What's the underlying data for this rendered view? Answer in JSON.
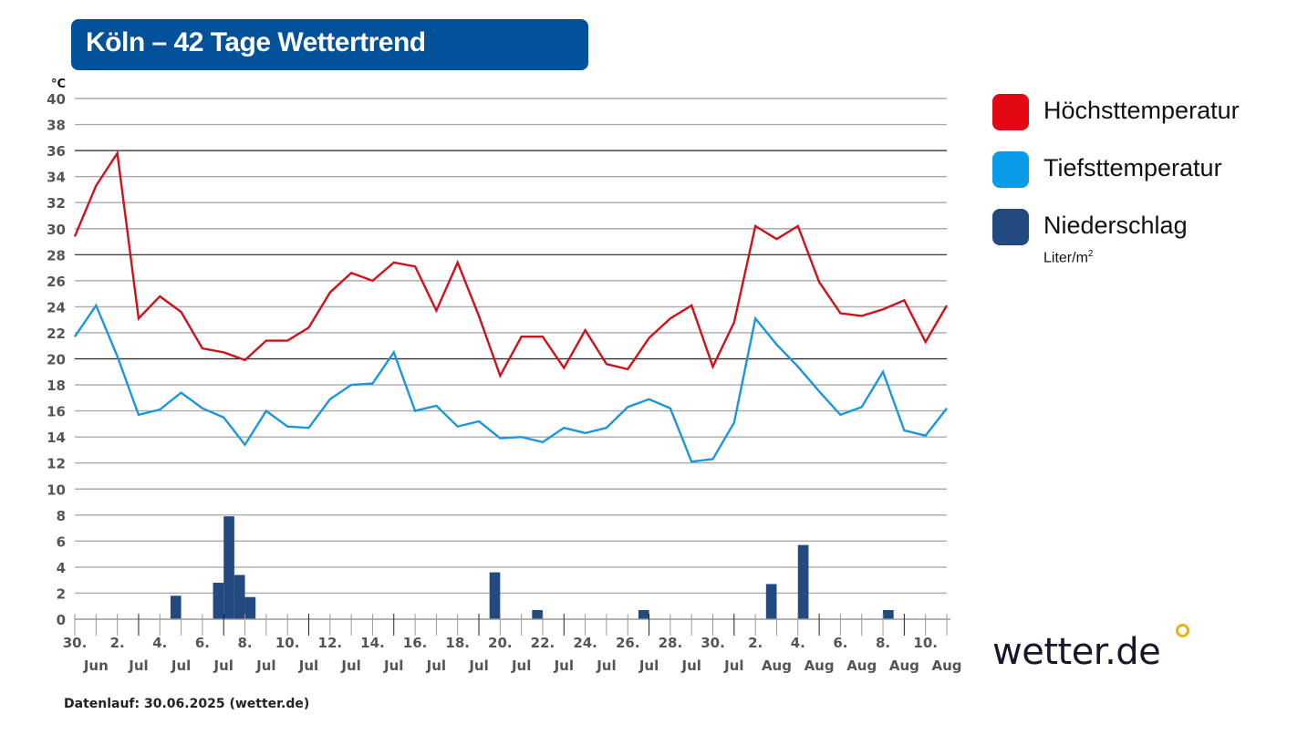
{
  "title": "Köln – 42 Tage Wettertrend",
  "footer": "Datenlauf: 30.06.2025 (wetter.de)",
  "logo": {
    "text": "wetter.de",
    "accent_color": "#e8b20c"
  },
  "legend": [
    {
      "label": "Höchsttemperatur",
      "color": "#e30613"
    },
    {
      "label": "Tiefsttemperatur",
      "color": "#0a9be8"
    },
    {
      "label": "Niederschlag",
      "unit": "Liter/m",
      "unit_sup": "2",
      "color": "#234a80"
    }
  ],
  "chart_data": {
    "type": "line",
    "title": "",
    "ylabel": "°C",
    "ylim": [
      0,
      40
    ],
    "yticks": [
      0,
      2,
      4,
      6,
      8,
      10,
      12,
      14,
      16,
      18,
      20,
      22,
      24,
      26,
      28,
      30,
      32,
      34,
      36,
      38,
      40
    ],
    "grid": true,
    "legend_position": "right",
    "x_tick_days": [
      "30.",
      "2.",
      "4.",
      "6.",
      "8.",
      "10.",
      "12.",
      "14.",
      "16.",
      "18.",
      "20.",
      "22.",
      "24.",
      "26.",
      "28.",
      "30.",
      "2.",
      "4.",
      "6.",
      "8.",
      "10."
    ],
    "x_tick_months": [
      "Jun",
      "Jul",
      "Jul",
      "Jul",
      "Jul",
      "Jul",
      "Jul",
      "Jul",
      "Jul",
      "Jul",
      "Jul",
      "Jul",
      "Jul",
      "Jul",
      "Jul",
      "Jul",
      "Aug",
      "Aug",
      "Aug",
      "Aug",
      "Aug"
    ],
    "series": [
      {
        "name": "Höchsttemperatur",
        "color": "#d0111b",
        "values": [
          29.4,
          33.3,
          35.8,
          23.1,
          24.8,
          23.6,
          20.8,
          20.5,
          19.9,
          21.4,
          21.4,
          22.4,
          25.1,
          26.6,
          26.0,
          27.4,
          27.1,
          23.7,
          27.4,
          23.3,
          18.7,
          21.7,
          21.7,
          19.3,
          22.2,
          19.6,
          19.2,
          21.6,
          23.1,
          24.1,
          19.4,
          22.8,
          30.2,
          29.2,
          30.2,
          25.9,
          23.5,
          23.3,
          23.8,
          24.5,
          21.3,
          24.1
        ]
      },
      {
        "name": "Tiefsttemperatur",
        "color": "#1a96dc",
        "values": [
          21.7,
          24.1,
          20.2,
          15.7,
          16.1,
          17.4,
          16.2,
          15.5,
          13.4,
          16.0,
          14.8,
          14.7,
          16.9,
          18.0,
          18.1,
          20.5,
          16.0,
          16.4,
          14.8,
          15.2,
          13.9,
          14.0,
          13.6,
          14.7,
          14.3,
          14.7,
          16.3,
          16.9,
          16.2,
          12.1,
          12.3,
          15.1,
          23.1,
          21.1,
          19.4,
          17.5,
          15.7,
          16.3,
          19.0,
          14.5,
          14.1,
          16.2
        ]
      }
    ],
    "precipitation": {
      "name": "Niederschlag",
      "unit": "Liter/m²",
      "color": "#234a80",
      "interval": "12h",
      "values": [
        0,
        0,
        0,
        0,
        0,
        0,
        0,
        0,
        0,
        1.8,
        0,
        0,
        0,
        2.8,
        7.9,
        3.4,
        1.7,
        0,
        0,
        0,
        0,
        0,
        0,
        0,
        0,
        0,
        0,
        0,
        0,
        0,
        0,
        0,
        0,
        0,
        0,
        0,
        0,
        0,
        0,
        3.6,
        0,
        0,
        0,
        0.7,
        0,
        0,
        0,
        0,
        0,
        0,
        0,
        0,
        0,
        0.7,
        0,
        0,
        0,
        0,
        0,
        0,
        0,
        0,
        0,
        0,
        0,
        2.7,
        0,
        0,
        5.7,
        0,
        0,
        0,
        0,
        0,
        0,
        0,
        0.7,
        0,
        0,
        0,
        0,
        0
      ]
    }
  }
}
